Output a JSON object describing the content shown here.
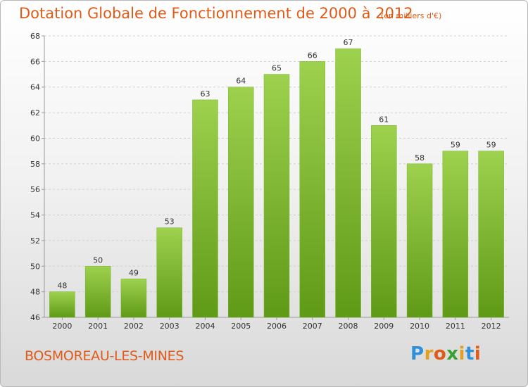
{
  "header": {
    "title": "Dotation Globale de Fonctionnement de 2000 à 2012",
    "unit_note": "(en milliers d'€)"
  },
  "footer": {
    "town": "BOSMOREAU-LES-MINES",
    "brand": "Proxiti",
    "brand_letters": [
      {
        "ch": "P",
        "color": "#2f8fd8"
      },
      {
        "ch": "r",
        "color": "#e0a020"
      },
      {
        "ch": "o",
        "color": "#e05a17"
      },
      {
        "ch": "x",
        "color": "#3aa035"
      },
      {
        "ch": "i",
        "color": "#e0a020"
      },
      {
        "ch": "t",
        "color": "#2f8fd8"
      },
      {
        "ch": "i",
        "color": "#e05a17"
      }
    ]
  },
  "chart_data": {
    "type": "bar",
    "title": "Dotation Globale de Fonctionnement de 2000 à 2012",
    "subtitle": "(en milliers d'€)",
    "xlabel": "",
    "ylabel": "",
    "categories": [
      "2000",
      "2001",
      "2002",
      "2003",
      "2004",
      "2005",
      "2006",
      "2007",
      "2008",
      "2009",
      "2010",
      "2011",
      "2012"
    ],
    "values": [
      48,
      50,
      49,
      53,
      63,
      64,
      65,
      66,
      67,
      61,
      58,
      59,
      59
    ],
    "ylim": [
      46,
      68
    ],
    "yticks": [
      46,
      48,
      50,
      52,
      54,
      56,
      58,
      60,
      62,
      64,
      66,
      68
    ],
    "grid": true,
    "legend": "none",
    "colors": {
      "bar_top": "#9dd14e",
      "bar_bottom": "#5f9a17",
      "grid": "#cfcfcf",
      "axis": "#9a9a9a"
    }
  }
}
